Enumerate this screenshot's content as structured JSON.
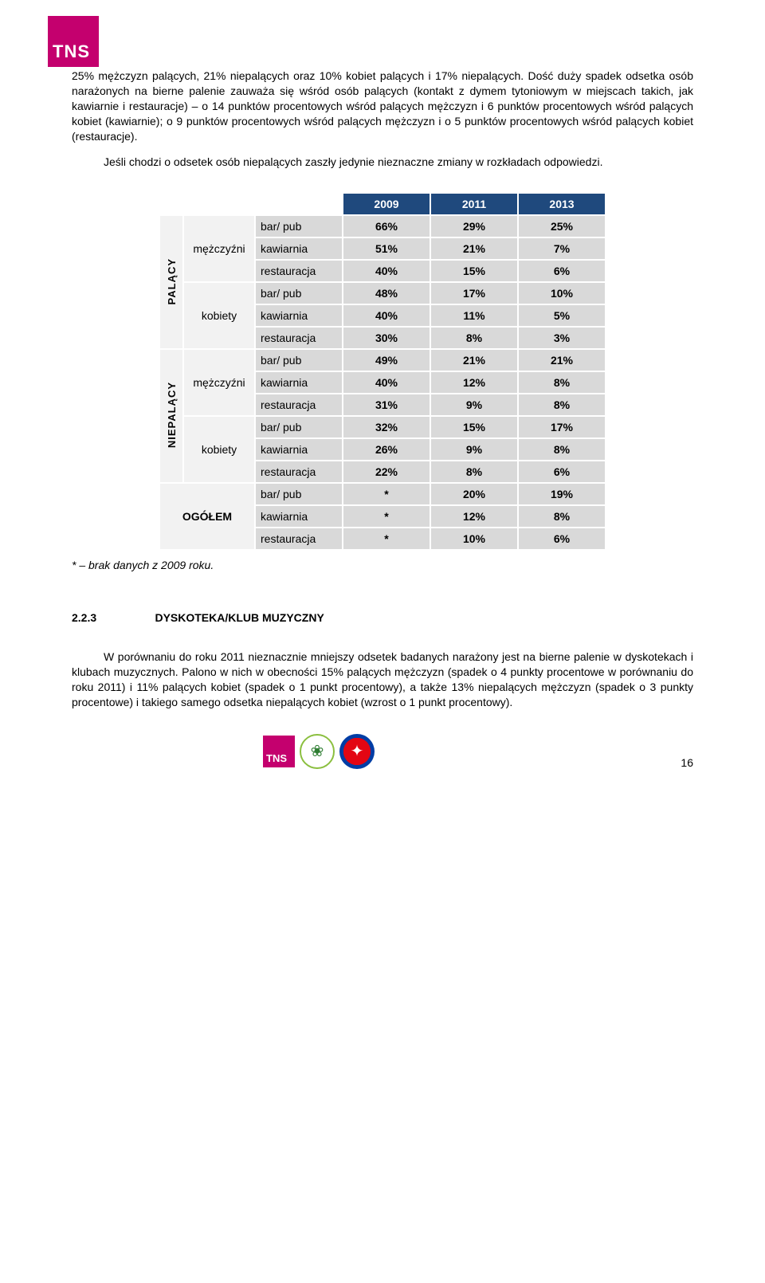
{
  "logo_text": "TNS",
  "paragraph1": "25% mężczyzn palących, 21% niepalących oraz 10% kobiet palących i 17% niepalących. Dość duży spadek odsetka osób narażonych na bierne palenie zauważa się wśród osób palących (kontakt z dymem tytoniowym w miejscach takich, jak kawiarnie i restauracje) – o 14 punktów procentowych wśród palących mężczyzn i 6 punktów procentowych wśród palących kobiet (kawiarnie); o 9 punktów procentowych wśród palących mężczyzn i o 5 punktów procentowych wśród palących kobiet (restauracje).",
  "paragraph2": "Jeśli chodzi o odsetek osób niepalących zaszły jedynie nieznaczne zmiany w rozkładach odpowiedzi.",
  "table": {
    "years": [
      "2009",
      "2011",
      "2013"
    ],
    "side_labels": [
      "PALĄCY",
      "NIEPALĄCY"
    ],
    "groups": {
      "men": "mężczyźni",
      "women": "kobiety",
      "total": "OGÓŁEM"
    },
    "venues": {
      "bar": "bar/ pub",
      "kawiarnia": "kawiarnia",
      "restauracja": "restauracja"
    },
    "data": {
      "palacy_men": {
        "bar": [
          "66%",
          "29%",
          "25%"
        ],
        "kawiarnia": [
          "51%",
          "21%",
          "7%"
        ],
        "restauracja": [
          "40%",
          "15%",
          "6%"
        ]
      },
      "palacy_women": {
        "bar": [
          "48%",
          "17%",
          "10%"
        ],
        "kawiarnia": [
          "40%",
          "11%",
          "5%"
        ],
        "restauracja": [
          "30%",
          "8%",
          "3%"
        ]
      },
      "niepal_men": {
        "bar": [
          "49%",
          "21%",
          "21%"
        ],
        "kawiarnia": [
          "40%",
          "12%",
          "8%"
        ],
        "restauracja": [
          "31%",
          "9%",
          "8%"
        ]
      },
      "niepal_women": {
        "bar": [
          "32%",
          "15%",
          "17%"
        ],
        "kawiarnia": [
          "26%",
          "9%",
          "8%"
        ],
        "restauracja": [
          "22%",
          "8%",
          "6%"
        ]
      },
      "ogolem": {
        "bar": [
          "*",
          "20%",
          "19%"
        ],
        "kawiarnia": [
          "*",
          "12%",
          "8%"
        ],
        "restauracja": [
          "*",
          "10%",
          "6%"
        ]
      }
    },
    "header_bg": "#1f497d",
    "header_fg": "#ffffff",
    "cell_bg": "#d9d9d9",
    "label_bg": "#f2f2f2"
  },
  "footnote": "* – brak danych z 2009 roku.",
  "section_num": "2.2.3",
  "section_title": "DYSKOTEKA/KLUB MUZYCZNY",
  "paragraph3": "W porównaniu do roku 2011 nieznacznie mniejszy odsetek badanych narażony jest na bierne palenie w dyskotekach i klubach muzycznych. Palono w nich w obecności 15% palących mężczyzn (spadek o 4 punkty procentowe w porównaniu do roku 2011) i 11% palących kobiet (spadek o 1 punkt procentowy), a także 13% niepalących mężczyzn (spadek o 3 punkty procentowe) i takiego samego odsetka niepalących kobiet (wzrost o 1 punkt procentowy).",
  "page_number": "16"
}
